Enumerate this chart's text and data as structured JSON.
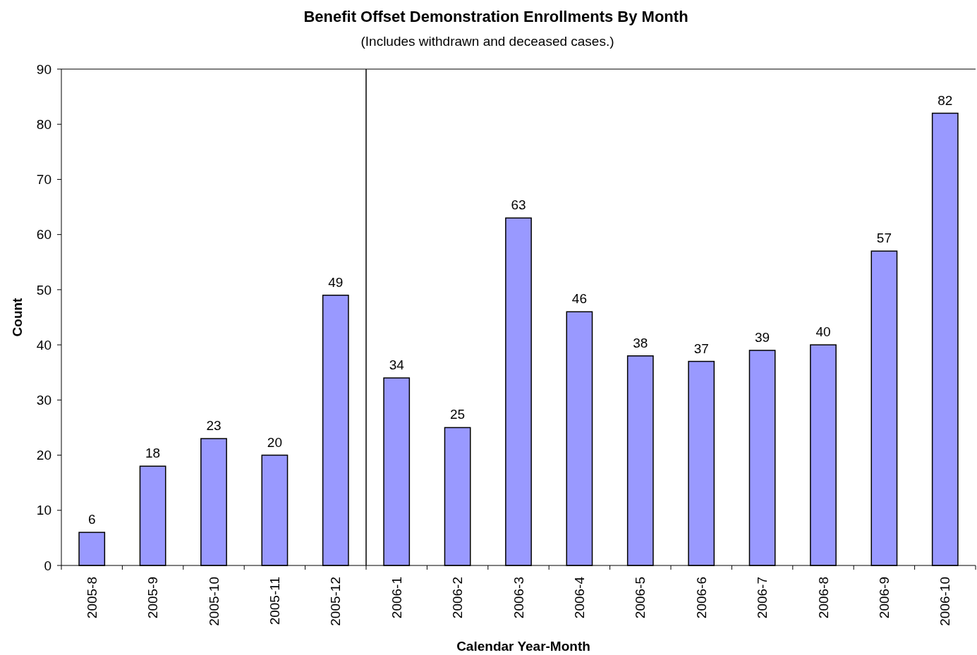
{
  "chart_data": {
    "type": "bar",
    "title": "Benefit Offset Demonstration Enrollments By Month",
    "subtitle": "(Includes withdrawn and deceased cases.)",
    "xlabel": "Calendar Year-Month",
    "ylabel": "Count",
    "categories": [
      "2005-8",
      "2005-9",
      "2005-10",
      "2005-11",
      "2005-12",
      "2006-1",
      "2006-2",
      "2006-3",
      "2006-4",
      "2006-5",
      "2006-6",
      "2006-7",
      "2006-8",
      "2006-9",
      "2006-10"
    ],
    "values": [
      6,
      18,
      23,
      20,
      49,
      34,
      25,
      63,
      46,
      38,
      37,
      39,
      40,
      57,
      82
    ],
    "color": "#9999ff",
    "ylim": [
      0,
      90
    ],
    "yticks": [
      0,
      10,
      20,
      30,
      40,
      50,
      60,
      70,
      80,
      90
    ],
    "data_labels": true
  }
}
